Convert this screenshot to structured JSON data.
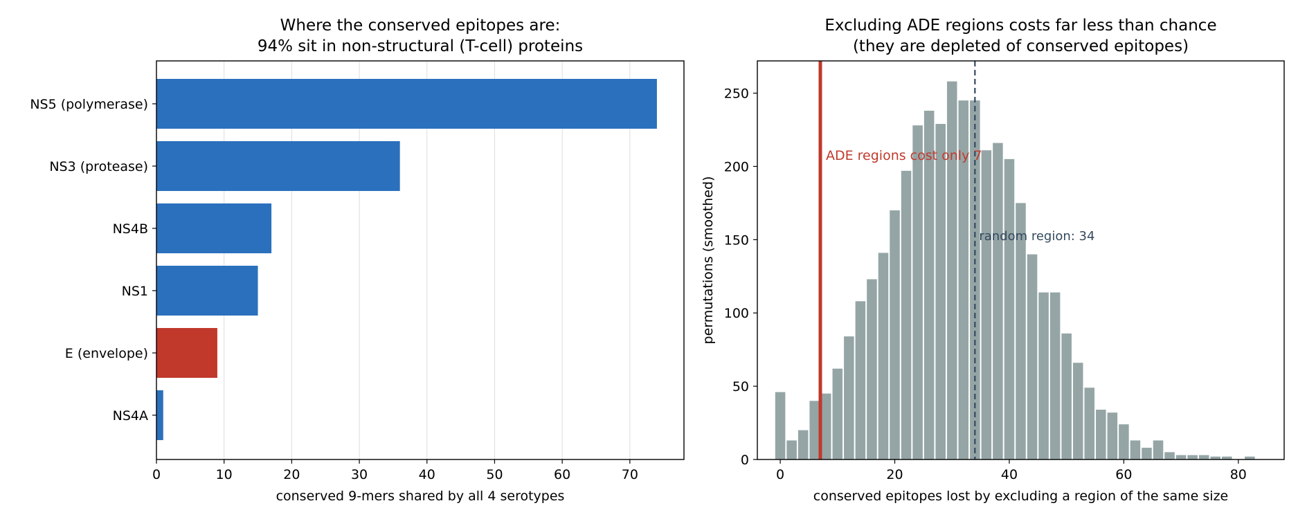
{
  "colors": {
    "ns_bar": "#2b70bd",
    "ade_bar": "#c0392b",
    "hist_bar": "#95a5a6",
    "ade_line": "#c0392b",
    "random_line": "#34495e",
    "grid": "#dddddd"
  },
  "chart_data": [
    {
      "type": "bar",
      "orientation": "horizontal",
      "title_line1": "Where the conserved epitopes are:",
      "title_line2": "94% sit in non-structural (T-cell) proteins",
      "xlabel": "conserved 9-mers shared by all 4 serotypes",
      "ylabel": "",
      "categories": [
        "NS5 (polymerase)",
        "NS3 (protease)",
        "NS4B",
        "NS1",
        "E (envelope)",
        "NS4A"
      ],
      "values": [
        74,
        36,
        17,
        15,
        9,
        1
      ],
      "highlight": [
        false,
        false,
        false,
        false,
        true,
        false
      ],
      "xlim": [
        0,
        78
      ],
      "xticks": [
        0,
        10,
        20,
        30,
        40,
        50,
        60,
        70
      ],
      "grid": "vertical"
    },
    {
      "type": "bar",
      "subtype": "histogram",
      "title_line1": "Excluding ADE regions costs far less than chance",
      "title_line2": "(they are depleted of conserved epitopes)",
      "xlabel": "conserved epitopes lost by excluding a region of the same size",
      "ylabel": "permutations (smoothed)",
      "bin_width": 2,
      "x": [
        0,
        2,
        4,
        6,
        8,
        10,
        12,
        14,
        16,
        18,
        20,
        22,
        24,
        26,
        28,
        30,
        32,
        34,
        36,
        38,
        40,
        42,
        44,
        46,
        48,
        50,
        52,
        54,
        56,
        58,
        60,
        62,
        64,
        66,
        68,
        70,
        72,
        74,
        76,
        78,
        80,
        82,
        84
      ],
      "values": [
        46,
        13,
        20,
        40,
        45,
        62,
        84,
        108,
        123,
        141,
        170,
        197,
        228,
        238,
        229,
        258,
        245,
        245,
        211,
        216,
        205,
        175,
        140,
        114,
        114,
        86,
        66,
        49,
        34,
        32,
        24,
        13,
        8,
        13,
        5,
        3,
        3,
        3,
        2,
        2,
        0,
        2,
        0
      ],
      "xlim": [
        -4,
        88
      ],
      "ylim": [
        0,
        272
      ],
      "xticks": [
        0,
        20,
        40,
        60,
        80
      ],
      "yticks": [
        0,
        50,
        100,
        150,
        200,
        250
      ],
      "ade_value": 7,
      "random_value": 34,
      "ade_label": "ADE regions cost only 7",
      "random_label": "random region: 34",
      "grid": "off"
    }
  ]
}
